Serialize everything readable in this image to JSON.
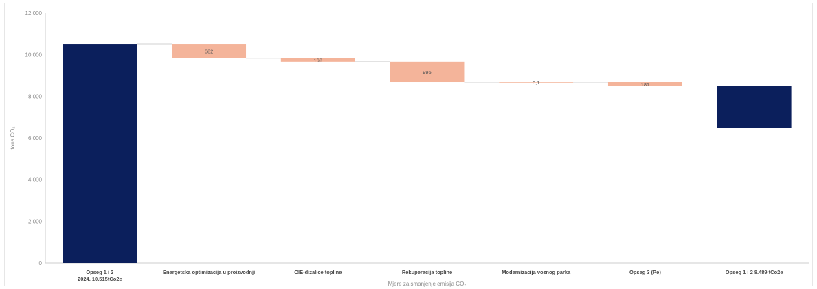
{
  "chart_data": {
    "type": "bar",
    "subtype": "waterfall",
    "categories": [
      "Opseg 1 i 2\n2024. 10.515tCo2e",
      "Energetska optimizacija u proizvodnji",
      "OIE-dizalice topline",
      "Rekuperacija topline",
      "Modernizacija voznog parka",
      "Opseg 3 (Pe)",
      "Opseg 1 i 2 8.489 tCo2e"
    ],
    "steps": [
      {
        "kind": "total",
        "start": 0,
        "end": 10515,
        "label": ""
      },
      {
        "kind": "delta",
        "start": 10515,
        "end": 9833,
        "label": "682"
      },
      {
        "kind": "delta",
        "start": 9833,
        "end": 9665,
        "label": "168"
      },
      {
        "kind": "delta",
        "start": 9665,
        "end": 8670,
        "label": "995"
      },
      {
        "kind": "delta",
        "start": 8670,
        "end": 8670,
        "label": "0,1"
      },
      {
        "kind": "delta",
        "start": 8670,
        "end": 8489,
        "label": "181"
      },
      {
        "kind": "total",
        "start": 6489,
        "end": 8489,
        "label": ""
      }
    ],
    "yticks": [
      "0",
      "2.000",
      "4.000",
      "6.000",
      "8.000",
      "10.000",
      "12.000"
    ],
    "ylim": [
      0,
      12000
    ],
    "ylabel": "tona CO₂",
    "xlabel": "Mjere za smanjenje emisija CO₂",
    "colors": {
      "total": "#0b1f5c",
      "delta": "#f4b49a",
      "connector": "#d0d0d0",
      "axis": "#cccccc"
    },
    "grid": false,
    "legend": "none"
  }
}
